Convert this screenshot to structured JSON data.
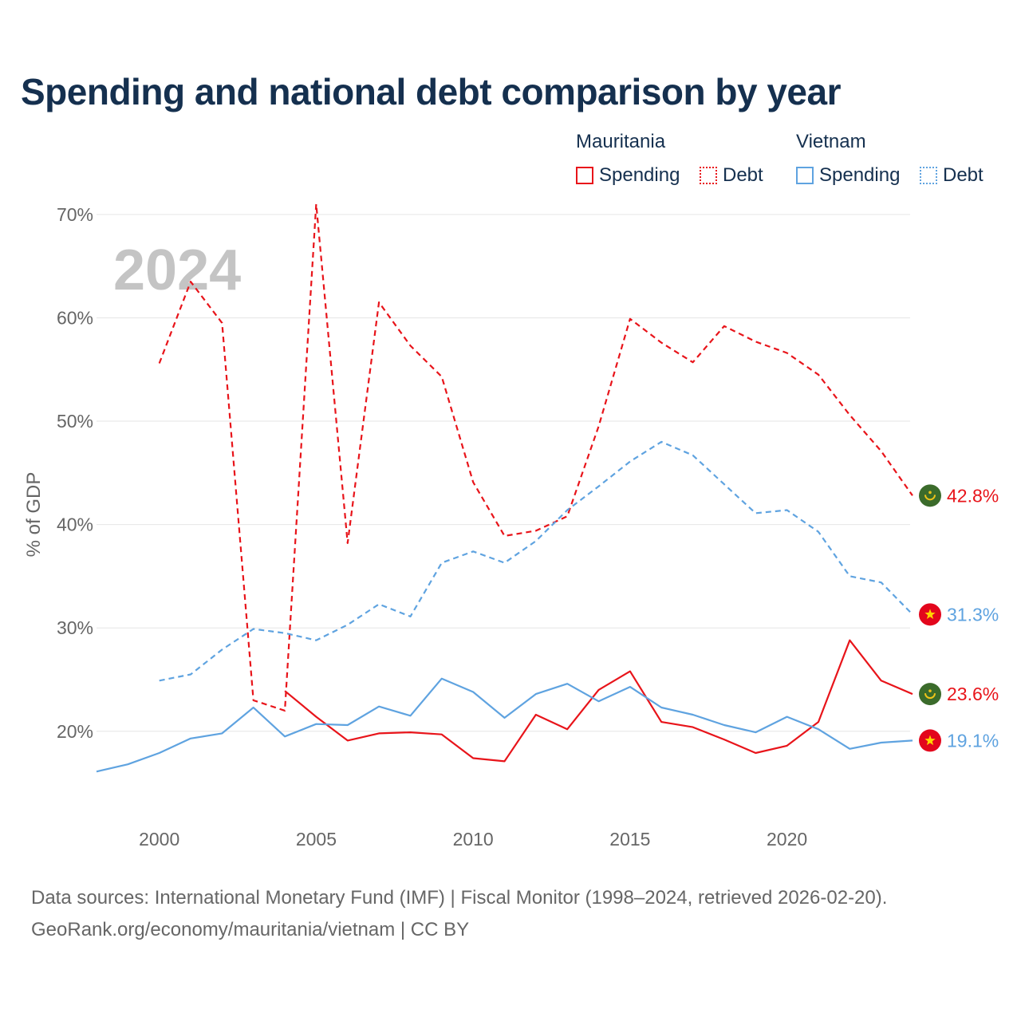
{
  "title": "Spending and national debt comparison by year",
  "legend": {
    "mauritania_label": "Mauritania",
    "vietnam_label": "Vietnam",
    "spending_label": "Spending",
    "debt_label": "Debt"
  },
  "chart_data": {
    "type": "line",
    "title": "Spending and national debt comparison by year",
    "ylabel": "% of GDP",
    "xlabel": "",
    "year_watermark": "2024",
    "xlim": [
      1998,
      2024
    ],
    "ylim": [
      13.5,
      73
    ],
    "x_ticks": [
      2000,
      2005,
      2010,
      2015,
      2020
    ],
    "y_ticks": [
      20,
      30,
      40,
      50,
      60,
      70
    ],
    "y_tick_labels": [
      "20%",
      "30%",
      "40%",
      "50%",
      "60%",
      "70%"
    ],
    "grid": true,
    "legend_position": "top-right",
    "series": [
      {
        "name": "Mauritania Debt",
        "country": "Mauritania",
        "measure": "Debt",
        "color": "#e8141a",
        "style": "dashed",
        "x": [
          2000,
          2001,
          2002,
          2003,
          2004,
          2005,
          2006,
          2007,
          2008,
          2009,
          2010,
          2011,
          2012,
          2013,
          2014,
          2015,
          2016,
          2017,
          2018,
          2019,
          2020,
          2021,
          2022,
          2023,
          2024
        ],
        "values": [
          55.6,
          63.5,
          59.5,
          23.0,
          22.0,
          71.0,
          38.2,
          61.5,
          57.3,
          54.3,
          44.1,
          38.9,
          39.4,
          40.8,
          49.5,
          59.9,
          57.6,
          55.7,
          59.2,
          57.7,
          56.6,
          54.5,
          50.6,
          47.1,
          42.8
        ],
        "end_label": "42.8%"
      },
      {
        "name": "Vietnam Debt",
        "country": "Vietnam",
        "measure": "Debt",
        "color": "#5fa3e0",
        "style": "dashed",
        "x": [
          2000,
          2001,
          2002,
          2003,
          2004,
          2005,
          2006,
          2007,
          2008,
          2009,
          2010,
          2011,
          2012,
          2013,
          2014,
          2015,
          2016,
          2017,
          2018,
          2019,
          2020,
          2021,
          2022,
          2023,
          2024
        ],
        "values": [
          24.9,
          25.5,
          27.9,
          29.9,
          29.5,
          28.8,
          30.3,
          32.3,
          31.1,
          36.3,
          37.4,
          36.3,
          38.4,
          41.4,
          43.7,
          46.1,
          48.0,
          46.7,
          43.9,
          41.1,
          41.4,
          39.3,
          35.0,
          34.4,
          31.3
        ],
        "end_label": "31.3%"
      },
      {
        "name": "Mauritania Spending",
        "country": "Mauritania",
        "measure": "Spending",
        "color": "#e8141a",
        "style": "solid",
        "x": [
          2004,
          2005,
          2006,
          2007,
          2008,
          2009,
          2010,
          2011,
          2012,
          2013,
          2014,
          2015,
          2016,
          2017,
          2018,
          2019,
          2020,
          2021,
          2022,
          2023,
          2024
        ],
        "values": [
          23.9,
          21.4,
          19.1,
          19.8,
          19.9,
          19.7,
          17.4,
          17.1,
          21.6,
          20.2,
          24.0,
          25.8,
          20.9,
          20.4,
          19.2,
          17.9,
          18.6,
          20.9,
          28.8,
          24.9,
          23.6
        ],
        "end_label": "23.6%"
      },
      {
        "name": "Vietnam Spending",
        "country": "Vietnam",
        "measure": "Spending",
        "color": "#5fa3e0",
        "style": "solid",
        "x": [
          1998,
          1999,
          2000,
          2001,
          2002,
          2003,
          2004,
          2005,
          2006,
          2007,
          2008,
          2009,
          2010,
          2011,
          2012,
          2013,
          2014,
          2015,
          2016,
          2017,
          2018,
          2019,
          2020,
          2021,
          2022,
          2023,
          2024
        ],
        "values": [
          16.1,
          16.8,
          17.9,
          19.3,
          19.8,
          22.3,
          19.5,
          20.7,
          20.6,
          22.4,
          21.5,
          25.1,
          23.8,
          21.3,
          23.6,
          24.6,
          22.9,
          24.3,
          22.3,
          21.6,
          20.6,
          19.9,
          21.4,
          20.2,
          18.3,
          18.9,
          19.1
        ],
        "end_label": "19.1%"
      }
    ]
  },
  "flags": {
    "mauritania_green": "#3b6b2b",
    "mauritania_gold": "#f0c419",
    "vietnam_red": "#e3061c",
    "vietnam_star": "#ffd500"
  },
  "colors": {
    "mauritania": "#e8141a",
    "vietnam": "#5fa3e0",
    "title": "#15304f",
    "axis_text": "#666666",
    "grid": "#e6e6e6",
    "watermark": "#c4c4c4"
  },
  "source": {
    "line1": "Data sources: International Monetary Fund (IMF) | Fiscal Monitor (1998–2024, retrieved 2026-02-20).",
    "line2": "GeoRank.org/economy/mauritania/vietnam | CC BY"
  }
}
